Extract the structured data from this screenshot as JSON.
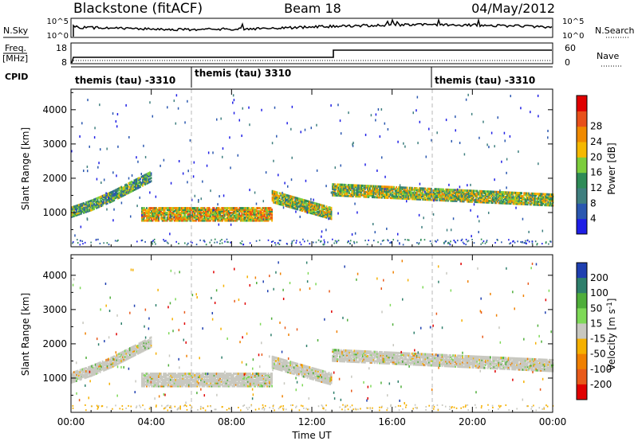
{
  "header": {
    "station": "Blackstone (fitACF)",
    "beam": "Beam 18",
    "date": "04/May/2012"
  },
  "aux_labels": {
    "nsky": "N.Sky",
    "nsearch": "N.Search",
    "freq_line1": "Freq.",
    "freq_line2": "[MHz]",
    "nave": "Nave",
    "cpid": "CPID",
    "noise_tick_top": "10^5",
    "noise_tick_bottom": "10^0",
    "freq_tick_top": "18",
    "freq_tick_bottom": "8",
    "nave_tick_top": "60",
    "nave_tick_bottom": "0"
  },
  "cpid_segments": [
    {
      "label": "themis (tau) -3310",
      "start_hour": 0,
      "end_hour": 6
    },
    {
      "label": "themis (tau) 3310",
      "start_hour": 6,
      "end_hour": 18
    },
    {
      "label": "themis (tau) -3310",
      "start_hour": 18,
      "end_hour": 24
    }
  ],
  "chart_data": [
    {
      "type": "heatmap",
      "panel": "power",
      "ylabel": "Slant Range [km]",
      "xlabel": "",
      "xlim": [
        0,
        24
      ],
      "ylim": [
        0,
        4600
      ],
      "yticks": [
        1000,
        2000,
        3000,
        4000
      ],
      "colorbar": {
        "label": "Power [dB]",
        "ticks": [
          4,
          8,
          12,
          16,
          20,
          24,
          28
        ],
        "colors": [
          "#1e1ee6",
          "#2a57b0",
          "#3f7f7f",
          "#2e8b57",
          "#7ccd3c",
          "#f5b800",
          "#f08a00",
          "#e8501a",
          "#e00000"
        ]
      },
      "echo_bands": [
        {
          "x": [
            0.0,
            1.0,
            2.0,
            3.0,
            4.0
          ],
          "range_center": [
            1050,
            1250,
            1500,
            1800,
            2100
          ],
          "half_width": 140,
          "power_db": 14
        },
        {
          "x": [
            3.5,
            10.0
          ],
          "range_center": [
            1000,
            1000
          ],
          "half_width": 200,
          "power_db": 22
        },
        {
          "x": [
            10.0,
            13.0
          ],
          "range_center": [
            1500,
            1000
          ],
          "half_width": 160,
          "power_db": 18
        },
        {
          "x": [
            13.0,
            24.0
          ],
          "range_center": [
            1700,
            1400
          ],
          "half_width": 160,
          "power_db": 18
        }
      ]
    },
    {
      "type": "heatmap",
      "panel": "velocity",
      "ylabel": "Slant Range [km]",
      "xlabel": "Time UT",
      "xlim": [
        0,
        24
      ],
      "ylim": [
        0,
        4600
      ],
      "xticks": [
        "00:00",
        "04:00",
        "08:00",
        "12:00",
        "16:00",
        "20:00",
        "00:00"
      ],
      "yticks": [
        1000,
        2000,
        3000,
        4000
      ],
      "colorbar": {
        "label": "Velocity [m s^-1]",
        "ticks": [
          200,
          100,
          50,
          15,
          -15,
          -50,
          -100,
          -200
        ],
        "colors": [
          "#1e3fb0",
          "#2e7f6b",
          "#4fae3a",
          "#7ed957",
          "#c8c8c0",
          "#f5b000",
          "#f08000",
          "#e85a1a",
          "#e00000"
        ]
      },
      "echo_bands": [
        {
          "x": [
            0.0,
            1.0,
            2.0,
            3.0,
            4.0
          ],
          "range_center": [
            1050,
            1250,
            1500,
            1800,
            2100
          ],
          "half_width": 140,
          "velocity": 0
        },
        {
          "x": [
            3.5,
            10.0
          ],
          "range_center": [
            1000,
            1000
          ],
          "half_width": 200,
          "velocity": 0
        },
        {
          "x": [
            10.0,
            13.0
          ],
          "range_center": [
            1500,
            1000
          ],
          "half_width": 160,
          "velocity": 0
        },
        {
          "x": [
            13.0,
            24.0
          ],
          "range_center": [
            1700,
            1400
          ],
          "half_width": 160,
          "velocity": 0
        }
      ]
    }
  ]
}
